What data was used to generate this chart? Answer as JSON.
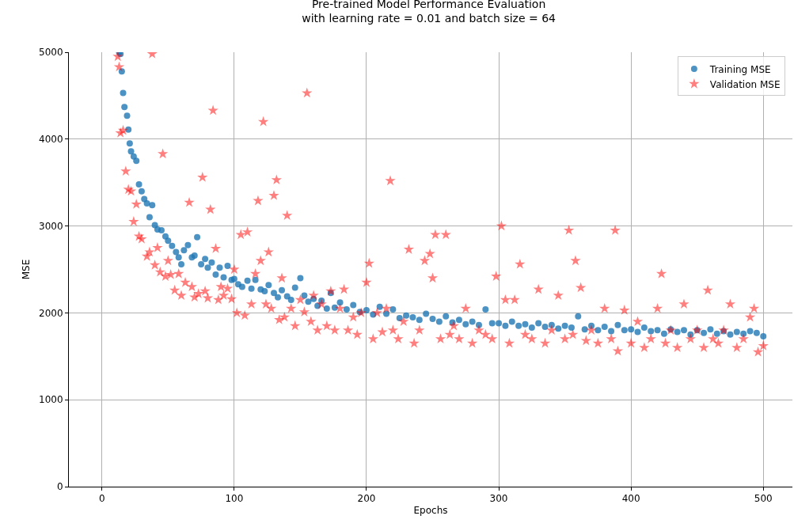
{
  "chart_data": {
    "type": "scatter",
    "title": "Pre-trained Model Performance Evaluation\nwith learning rate = 0.01 and batch size = 64",
    "xlabel": "Epochs",
    "ylabel": "MSE",
    "xlim": [
      -25,
      522
    ],
    "ylim": [
      0,
      5000
    ],
    "xticks": [
      0,
      100,
      200,
      300,
      400,
      500
    ],
    "yticks": [
      0,
      1000,
      2000,
      3000,
      4000,
      5000
    ],
    "grid": true,
    "legend": "top right",
    "series": [
      {
        "name": "Training MSE",
        "color": "#1f77b4",
        "marker": "circle",
        "x": [
          13,
          14,
          15,
          16,
          17,
          19,
          20,
          21,
          22,
          24,
          26,
          28,
          30,
          32,
          34,
          36,
          38,
          40,
          42,
          45,
          48,
          50,
          53,
          56,
          58,
          60,
          62,
          65,
          68,
          70,
          72,
          75,
          78,
          80,
          83,
          86,
          89,
          92,
          95,
          98,
          100,
          103,
          106,
          110,
          113,
          116,
          120,
          123,
          126,
          130,
          133,
          136,
          140,
          143,
          146,
          150,
          153,
          156,
          160,
          163,
          166,
          170,
          173,
          176,
          180,
          185,
          190,
          195,
          200,
          205,
          210,
          215,
          220,
          225,
          230,
          235,
          240,
          245,
          250,
          255,
          260,
          265,
          270,
          275,
          280,
          285,
          290,
          295,
          300,
          305,
          310,
          315,
          320,
          325,
          330,
          335,
          340,
          345,
          350,
          355,
          360,
          365,
          370,
          375,
          380,
          385,
          390,
          395,
          400,
          405,
          410,
          415,
          420,
          425,
          430,
          435,
          440,
          445,
          450,
          455,
          460,
          465,
          470,
          475,
          480,
          485,
          490,
          495,
          500
        ],
        "values": [
          5000,
          4980,
          4780,
          4530,
          4370,
          4270,
          4110,
          3950,
          3860,
          3800,
          3750,
          3480,
          3400,
          3310,
          3260,
          3100,
          3240,
          3010,
          2960,
          2950,
          2880,
          2830,
          2770,
          2700,
          2640,
          2560,
          2720,
          2780,
          2640,
          2660,
          2870,
          2560,
          2620,
          2520,
          2580,
          2440,
          2520,
          2410,
          2540,
          2380,
          2390,
          2330,
          2300,
          2370,
          2280,
          2380,
          2270,
          2250,
          2320,
          2230,
          2180,
          2260,
          2190,
          2150,
          2290,
          2400,
          2200,
          2130,
          2160,
          2080,
          2140,
          2050,
          2230,
          2060,
          2120,
          2040,
          2090,
          2010,
          2030,
          1980,
          2070,
          1990,
          2040,
          1940,
          1970,
          1950,
          1920,
          1990,
          1930,
          1900,
          1960,
          1890,
          1920,
          1870,
          1900,
          1860,
          2040,
          1880,
          1880,
          1850,
          1900,
          1850,
          1870,
          1830,
          1880,
          1840,
          1860,
          1820,
          1850,
          1830,
          1960,
          1810,
          1850,
          1800,
          1840,
          1790,
          1860,
          1800,
          1810,
          1780,
          1830,
          1790,
          1800,
          1760,
          1810,
          1780,
          1800,
          1750,
          1800,
          1770,
          1810,
          1760,
          1790,
          1750,
          1780,
          1760,
          1790,
          1770,
          1730
        ]
      },
      {
        "name": "Validation MSE",
        "color": "#ff0000",
        "marker": "star",
        "x": [
          12,
          13,
          14,
          16,
          18,
          20,
          22,
          24,
          26,
          28,
          30,
          32,
          34,
          36,
          38,
          40,
          42,
          44,
          46,
          48,
          50,
          52,
          55,
          58,
          60,
          63,
          66,
          68,
          70,
          73,
          76,
          78,
          80,
          82,
          84,
          86,
          88,
          90,
          92,
          95,
          98,
          100,
          102,
          105,
          108,
          110,
          113,
          116,
          118,
          120,
          122,
          124,
          126,
          128,
          130,
          132,
          134,
          136,
          138,
          140,
          143,
          146,
          150,
          153,
          155,
          158,
          160,
          163,
          166,
          170,
          173,
          176,
          180,
          183,
          186,
          190,
          193,
          196,
          200,
          202,
          205,
          208,
          212,
          215,
          218,
          220,
          224,
          228,
          232,
          236,
          240,
          244,
          248,
          250,
          252,
          256,
          260,
          263,
          266,
          270,
          275,
          280,
          285,
          290,
          295,
          298,
          302,
          305,
          308,
          312,
          316,
          320,
          325,
          330,
          335,
          340,
          345,
          350,
          353,
          356,
          358,
          362,
          366,
          370,
          375,
          380,
          385,
          388,
          390,
          395,
          400,
          405,
          410,
          415,
          420,
          423,
          426,
          430,
          435,
          440,
          445,
          450,
          455,
          458,
          462,
          466,
          470,
          475,
          480,
          485,
          490,
          493,
          496,
          500
        ],
        "values": [
          4950,
          4830,
          4070,
          4100,
          3630,
          3420,
          3400,
          3050,
          3250,
          2880,
          2850,
          null,
          2650,
          2700,
          4980,
          2550,
          2750,
          2470,
          3830,
          2420,
          2600,
          2440,
          2260,
          2450,
          2200,
          2350,
          3270,
          2300,
          2180,
          2220,
          3560,
          2250,
          2170,
          3190,
          4330,
          2740,
          2150,
          2300,
          2200,
          2280,
          2160,
          2500,
          2000,
          2900,
          1970,
          2930,
          2100,
          2450,
          3290,
          2600,
          4200,
          2100,
          2700,
          2050,
          3350,
          3530,
          1920,
          2400,
          1950,
          3120,
          2050,
          1850,
          2150,
          2010,
          4530,
          1900,
          2200,
          1800,
          2100,
          1850,
          2250,
          1800,
          2050,
          2270,
          1800,
          1950,
          1750,
          2000,
          2350,
          2570,
          1700,
          2000,
          1780,
          2050,
          3520,
          1800,
          1700,
          1900,
          2730,
          1650,
          1800,
          2600,
          2680,
          2400,
          2900,
          1700,
          2900,
          1750,
          1850,
          1700,
          2050,
          1650,
          1800,
          1750,
          1700,
          2420,
          3000,
          2150,
          1650,
          2150,
          2560,
          1750,
          1700,
          2270,
          1650,
          1800,
          2200,
          1700,
          2950,
          1750,
          2600,
          2290,
          1680,
          1800,
          1650,
          2050,
          1700,
          2950,
          1560,
          2030,
          1650,
          1900,
          1600,
          1700,
          2050,
          2450,
          1650,
          1800,
          1600,
          2100,
          1700,
          1800,
          1600,
          2260,
          1700,
          1650,
          1800,
          2100,
          1600,
          1700,
          1950,
          2050,
          1550,
          1620
        ]
      }
    ]
  }
}
